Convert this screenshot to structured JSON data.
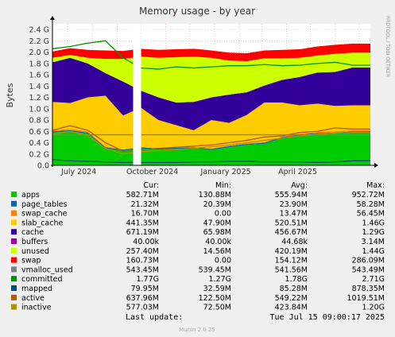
{
  "title": "Memory usage - by year",
  "ylabel": "Bytes",
  "watermark": "RRDTOOL / TOBI OETIKER",
  "footer": "Munin 2.0.25",
  "last_update_label": "Last update:",
  "last_update_value": "Tue Jul 15 09:00:17 2025",
  "columns": [
    "Cur:",
    "Min:",
    "Avg:",
    "Max:"
  ],
  "colors": {
    "background": "#f0f0f0",
    "canvas": "#ffffff",
    "grid": "#e8a0a0",
    "axis": "#000000"
  },
  "chart_data": {
    "type": "area",
    "title": "Memory usage - by year",
    "ylabel": "Bytes",
    "xlabel": "",
    "x_ticks": [
      "July 2024",
      "October 2024",
      "January 2025",
      "April 2025"
    ],
    "y_ticks": [
      "0.0",
      "0.2 G",
      "0.4 G",
      "0.6 G",
      "0.8 G",
      "1.0 G",
      "1.2 G",
      "1.4 G",
      "1.6 G",
      "1.8 G",
      "2.0 G",
      "2.2 G",
      "2.4 G"
    ],
    "y_unit": "G",
    "ylim": [
      0,
      2.5
    ],
    "grid": true,
    "x_range": [
      "2024-06-12",
      "2025-07-15"
    ],
    "data_gap": [
      "2024-09-21",
      "2024-10-01"
    ],
    "series": [
      {
        "name": "apps",
        "color": "#00cc00",
        "cur": "582.71M",
        "min": "130.88M",
        "avg": "555.94M",
        "max": "952.72M",
        "values": [
          0.58,
          0.6,
          0.56,
          0.3,
          0.26,
          0.3,
          0.28,
          0.29,
          0.3,
          0.27,
          0.32,
          0.36,
          0.38,
          0.48,
          0.52,
          0.55,
          0.56,
          0.58,
          0.58
        ]
      },
      {
        "name": "page_tables",
        "color": "#0066b3",
        "cur": "21.32M",
        "min": "20.39M",
        "avg": "23.90M",
        "max": "58.28M",
        "values": [
          0.02,
          0.02,
          0.02,
          0.02,
          0.02,
          0.02,
          0.02,
          0.02,
          0.02,
          0.02,
          0.02,
          0.02,
          0.02,
          0.02,
          0.02,
          0.02,
          0.02,
          0.02,
          0.02
        ]
      },
      {
        "name": "swap_cache",
        "color": "#ff8000",
        "cur": "16.70M",
        "min": "0.00",
        "avg": "13.47M",
        "max": "56.45M",
        "values": [
          0.02,
          0.02,
          0.02,
          0.01,
          0.0,
          0.0,
          0.0,
          0.0,
          0.0,
          0.01,
          0.01,
          0.01,
          0.01,
          0.01,
          0.02,
          0.02,
          0.02,
          0.02,
          0.02
        ]
      },
      {
        "name": "slab_cache",
        "color": "#ffcc00",
        "cur": "441.35M",
        "min": "47.90M",
        "avg": "520.51M",
        "max": "1.46G",
        "values": [
          0.5,
          0.46,
          0.6,
          0.9,
          0.6,
          0.7,
          0.5,
          0.4,
          0.3,
          0.5,
          0.4,
          0.5,
          0.7,
          0.6,
          0.5,
          0.5,
          0.45,
          0.44,
          0.44
        ]
      },
      {
        "name": "cache",
        "color": "#330099",
        "cur": "671.19M",
        "min": "65.98M",
        "avg": "456.67M",
        "max": "1.29G",
        "values": [
          0.7,
          0.8,
          0.6,
          0.4,
          0.6,
          0.3,
          0.4,
          0.4,
          0.5,
          0.4,
          0.5,
          0.4,
          0.3,
          0.4,
          0.5,
          0.55,
          0.6,
          0.67,
          0.67
        ]
      },
      {
        "name": "buffers",
        "color": "#990099",
        "cur": "40.00k",
        "min": "40.00k",
        "avg": "44.68k",
        "max": "3.14M",
        "values": [
          0.0,
          0.0,
          0.0,
          0.0,
          0.0,
          0.0,
          0.0,
          0.0,
          0.0,
          0.0,
          0.0,
          0.0,
          0.0,
          0.0,
          0.0,
          0.0,
          0.0,
          0.0,
          0.0
        ]
      },
      {
        "name": "unused",
        "color": "#ccff00",
        "cur": "257.40M",
        "min": "14.56M",
        "avg": "420.19M",
        "max": "1.44G",
        "values": [
          0.08,
          0.05,
          0.1,
          0.25,
          0.4,
          0.6,
          0.7,
          0.8,
          0.8,
          0.7,
          0.6,
          0.55,
          0.48,
          0.38,
          0.34,
          0.3,
          0.32,
          0.26,
          0.26
        ]
      },
      {
        "name": "swap",
        "color": "#ff0000",
        "cur": "160.73M",
        "min": "0.00",
        "avg": "154.12M",
        "max": "286.09M",
        "values": [
          0.11,
          0.12,
          0.14,
          0.15,
          0.14,
          0.14,
          0.14,
          0.14,
          0.14,
          0.13,
          0.14,
          0.14,
          0.14,
          0.15,
          0.15,
          0.16,
          0.16,
          0.16,
          0.16
        ]
      },
      {
        "name": "vmalloc_used",
        "color": "#808080",
        "cur": "543.45M",
        "min": "539.45M",
        "avg": "541.56M",
        "max": "543.49M",
        "values": [
          0.54,
          0.54,
          0.54,
          0.54,
          0.54,
          0.54,
          0.54,
          0.54,
          0.54,
          0.54,
          0.54,
          0.54,
          0.54,
          0.54,
          0.54,
          0.54,
          0.54,
          0.54,
          0.54
        ]
      },
      {
        "name": "committed",
        "color": "#008f00",
        "cur": "1.77G",
        "min": "1.27G",
        "avg": "1.78G",
        "max": "2.71G",
        "values": [
          2.06,
          2.1,
          2.16,
          2.2,
          1.9,
          1.72,
          1.7,
          1.74,
          1.72,
          1.74,
          1.76,
          1.76,
          1.78,
          1.76,
          1.77,
          1.8,
          1.82,
          1.77,
          1.77
        ]
      },
      {
        "name": "mapped",
        "color": "#00487d",
        "cur": "79.95M",
        "min": "32.59M",
        "avg": "85.28M",
        "max": "878.35M",
        "values": [
          0.1,
          0.08,
          0.07,
          0.06,
          0.05,
          0.05,
          0.05,
          0.05,
          0.06,
          0.06,
          0.07,
          0.07,
          0.06,
          0.06,
          0.06,
          0.05,
          0.06,
          0.08,
          0.08
        ]
      },
      {
        "name": "active",
        "color": "#b35a00",
        "cur": "637.96M",
        "min": "122.50M",
        "avg": "549.22M",
        "max": "1019.51M",
        "values": [
          0.62,
          0.7,
          0.62,
          0.4,
          0.25,
          0.28,
          0.3,
          0.32,
          0.34,
          0.36,
          0.4,
          0.44,
          0.5,
          0.52,
          0.58,
          0.6,
          0.66,
          0.64,
          0.64
        ]
      },
      {
        "name": "inactive",
        "color": "#b38f00",
        "cur": "577.03M",
        "min": "72.50M",
        "avg": "423.84M",
        "max": "1.20G",
        "values": [
          0.55,
          0.6,
          0.52,
          0.3,
          0.2,
          0.24,
          0.26,
          0.28,
          0.3,
          0.33,
          0.36,
          0.4,
          0.44,
          0.48,
          0.52,
          0.55,
          0.57,
          0.58,
          0.58
        ]
      }
    ]
  }
}
